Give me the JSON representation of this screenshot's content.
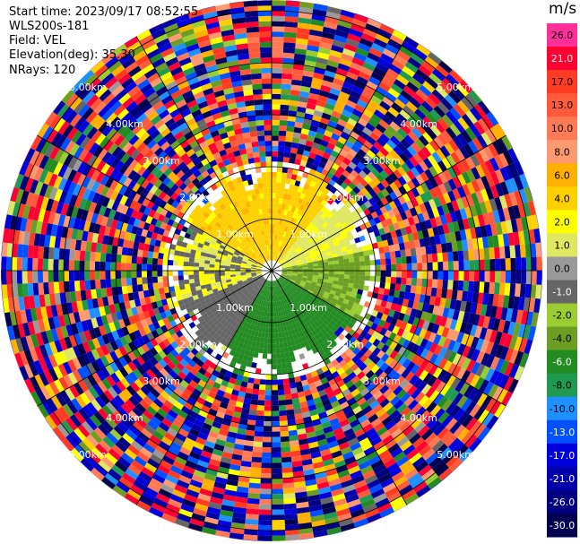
{
  "info": {
    "start_time": "Start time: 2023/09/17 08:52:55",
    "instrument": "WLS200s-181",
    "field": "Field: VEL",
    "elevation": "Elevation(deg): 35.30",
    "nrays": "NRays: 120"
  },
  "colorbar": {
    "unit": "m/s",
    "ticks": [
      "26.0",
      "21.0",
      "17.0",
      "13.0",
      "10.0",
      "8.0",
      "6.0",
      "4.0",
      "2.0",
      "1.0",
      "0.0",
      "-1.0",
      "-2.0",
      "-4.0",
      "-6.0",
      "-8.0",
      "-10.0",
      "-13.0",
      "-17.0",
      "-21.0",
      "-26.0",
      "-30.0"
    ],
    "colors": [
      "#ff2f9a",
      "#ff0033",
      "#ff3b22",
      "#ff5a3a",
      "#ff7a55",
      "#ff9a70",
      "#ffb000",
      "#ffd000",
      "#ffff00",
      "#dfe860",
      "#9a9a9a",
      "#666666",
      "#9acd32",
      "#6b9e23",
      "#228b22",
      "#1f9a50",
      "#1e90ff",
      "#0050ff",
      "#0000dd",
      "#0000aa",
      "#000080",
      "#000050"
    ]
  },
  "chart_data": {
    "type": "heatmap",
    "projection": "polar PPI",
    "field": "VEL",
    "units": "m/s",
    "n_rays": 120,
    "range_rings_km": [
      "1.00km",
      "2.00km",
      "3.00km",
      "4.00km",
      "5.00km"
    ],
    "vmin": -30.0,
    "vmax": 26.0,
    "pattern": [
      {
        "sector": "north",
        "range_km": [
          0.3,
          2.0
        ],
        "values": [
          4.0,
          6.0
        ],
        "note": "orange / yellow"
      },
      {
        "sector": "east-north-east",
        "range_km": [
          0.3,
          2.0
        ],
        "values": [
          0.0,
          2.0
        ]
      },
      {
        "sector": "west",
        "range_km": [
          0.3,
          1.8
        ],
        "values": [
          -1.0,
          0.0
        ]
      },
      {
        "sector": "south",
        "range_km": [
          0.3,
          1.8
        ],
        "values": [
          -6.0,
          -2.0
        ],
        "note": "green"
      },
      {
        "sector": "all",
        "range_km": [
          2.0,
          5.2
        ],
        "values": "random noise across full scale"
      }
    ]
  }
}
